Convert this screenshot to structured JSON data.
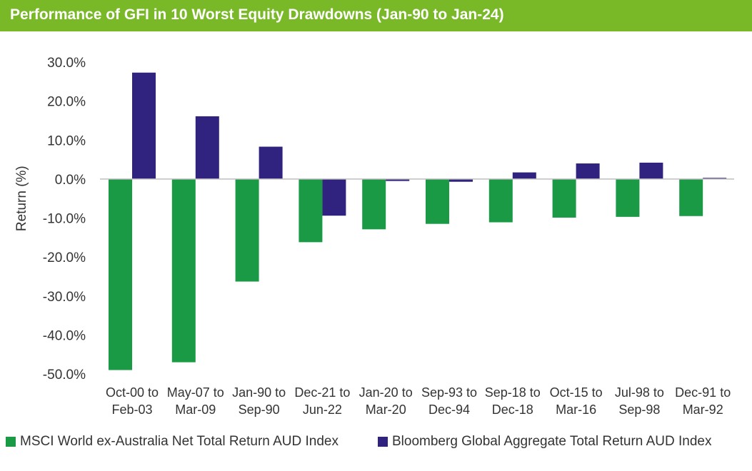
{
  "chart_data": {
    "type": "bar",
    "title": "Performance of GFI in 10 Worst Equity Drawdowns (Jan-90 to Jan-24)",
    "xlabel": "",
    "ylabel": "Return (%)",
    "ylim": [
      -50,
      30
    ],
    "yticks": [
      "30.0%",
      "20.0%",
      "10.0%",
      "0.0%",
      "-10.0%",
      "-20.0%",
      "-30.0%",
      "-40.0%",
      "-50.0%"
    ],
    "ytick_values": [
      30,
      20,
      10,
      0,
      -10,
      -20,
      -30,
      -40,
      -50
    ],
    "categories": [
      [
        "Oct-00 to",
        "Feb-03"
      ],
      [
        "May-07 to",
        "Mar-09"
      ],
      [
        "Jan-90 to",
        "Sep-90"
      ],
      [
        "Dec-21 to",
        "Jun-22"
      ],
      [
        "Jan-20 to",
        "Mar-20"
      ],
      [
        "Sep-93 to",
        "Dec-94"
      ],
      [
        "Sep-18 to",
        "Dec-18"
      ],
      [
        "Oct-15 to",
        "Mar-16"
      ],
      [
        "Jul-98 to",
        "Sep-98"
      ],
      [
        "Dec-91 to",
        "Mar-92"
      ]
    ],
    "series": [
      {
        "name": "MSCI World ex-Australia Net Total Return AUD Index",
        "color": "#1a9a45",
        "values": [
          -49.0,
          -47.0,
          -26.3,
          -16.2,
          -12.9,
          -11.5,
          -11.1,
          -9.9,
          -9.7,
          -9.5
        ]
      },
      {
        "name": "Bloomberg Global Aggregate Total Return AUD Index",
        "color": "#2f237f",
        "values": [
          27.3,
          16.1,
          8.3,
          -9.4,
          -0.5,
          -0.7,
          1.7,
          4.0,
          4.2,
          0.3
        ]
      }
    ],
    "legend_position": "bottom",
    "grid": false
  },
  "colors": {
    "title_bar": "#79b928",
    "title_text": "#ffffff",
    "axis": "#bfbfbf"
  }
}
